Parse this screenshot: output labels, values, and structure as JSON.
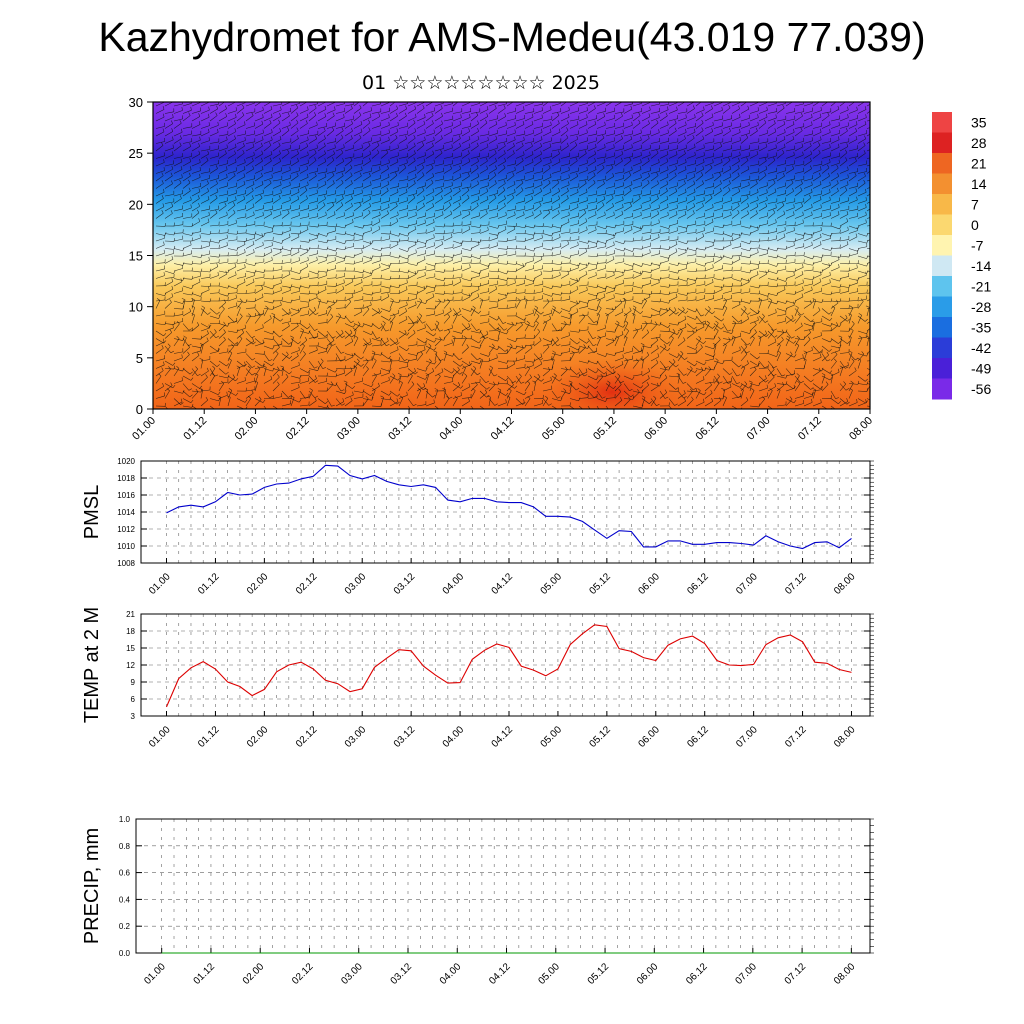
{
  "title": "Kazhydromet for AMS-Medeu(43.019 77.039)",
  "subtitle": "01 ☆☆☆☆☆☆☆☆☆ 2025",
  "colorbar": {
    "labels": [
      "35",
      "28",
      "21",
      "14",
      "7",
      "0",
      "-7",
      "-14",
      "-21",
      "-28",
      "-35",
      "-42",
      "-49",
      "-56"
    ],
    "colors": [
      "#ee4444",
      "#dd2222",
      "#ee6622",
      "#f39030",
      "#f8b848",
      "#fbd870",
      "#fff4b0",
      "#cfe8f3",
      "#5ec4ee",
      "#2a9ce8",
      "#1a6ee0",
      "#2b3dd8",
      "#4a20d8",
      "#7a2ae8"
    ]
  },
  "time_ticks": [
    "01.00",
    "01.12",
    "02.00",
    "02.12",
    "03.00",
    "03.12",
    "04.00",
    "04.12",
    "05.00",
    "05.12",
    "06.00",
    "06.12",
    "07.00",
    "07.12",
    "08.00"
  ],
  "chart_data": [
    {
      "type": "heatmap",
      "name": "temperature cross-section with wind barbs",
      "ylim": [
        0,
        30
      ],
      "y_ticks": [
        "0",
        "5",
        "10",
        "15",
        "20",
        "25",
        "30"
      ],
      "color_levels": [
        35,
        28,
        21,
        14,
        7,
        0,
        -7,
        -14,
        -21,
        -28,
        -35,
        -42,
        -49,
        -56
      ]
    },
    {
      "type": "line",
      "ylabel": "PMSL",
      "ylim": [
        1008,
        1020
      ],
      "y_ticks": [
        "1008",
        "1010",
        "1012",
        "1014",
        "1016",
        "1018",
        "1020"
      ],
      "color": "#0000cc",
      "x": [
        0,
        3,
        6,
        9,
        12,
        15,
        18,
        21,
        24,
        27,
        30,
        33,
        36,
        39,
        42,
        45,
        48,
        51,
        54,
        57,
        60,
        63,
        66,
        69,
        72,
        75,
        78,
        81,
        84,
        87,
        90,
        93,
        96,
        99,
        102,
        105,
        108,
        111,
        114,
        117,
        120,
        123,
        126,
        129,
        132,
        135,
        138,
        141,
        144,
        147,
        150,
        153,
        156,
        159,
        162,
        165,
        168
      ],
      "values": [
        1013.9,
        1014.6,
        1014.8,
        1014.6,
        1015.2,
        1016.3,
        1016.0,
        1016.1,
        1016.9,
        1017.3,
        1017.4,
        1017.9,
        1018.2,
        1019.5,
        1019.4,
        1018.3,
        1017.9,
        1018.3,
        1017.6,
        1017.2,
        1017.0,
        1017.2,
        1016.9,
        1015.4,
        1015.2,
        1015.6,
        1015.6,
        1015.2,
        1015.1,
        1015.1,
        1014.6,
        1013.5,
        1013.5,
        1013.4,
        1012.9,
        1011.9,
        1010.9,
        1011.8,
        1011.7,
        1009.9,
        1009.9,
        1010.6,
        1010.6,
        1010.2,
        1010.2,
        1010.4,
        1010.4,
        1010.3,
        1010.1,
        1011.2,
        1010.5,
        1010.0,
        1009.7,
        1010.4,
        1010.5,
        1009.8,
        1010.9
      ]
    },
    {
      "type": "line",
      "ylabel": "TEMP at 2 M",
      "ylim": [
        3,
        21
      ],
      "y_ticks": [
        "3",
        "6",
        "9",
        "12",
        "15",
        "18",
        "21"
      ],
      "color": "#dd0000",
      "x": [
        0,
        3,
        6,
        9,
        12,
        15,
        18,
        21,
        24,
        27,
        30,
        33,
        36,
        39,
        42,
        45,
        48,
        51,
        54,
        57,
        60,
        63,
        66,
        69,
        72,
        75,
        78,
        81,
        84,
        87,
        90,
        93,
        96,
        99,
        102,
        105,
        108,
        111,
        114,
        117,
        120,
        123,
        126,
        129,
        132,
        135,
        138,
        141,
        144,
        147,
        150,
        153,
        156,
        159,
        162,
        165,
        168
      ],
      "values": [
        4.6,
        9.6,
        11.5,
        12.6,
        11.3,
        9.0,
        8.2,
        6.6,
        7.7,
        10.8,
        12.0,
        12.5,
        11.3,
        9.3,
        8.7,
        7.3,
        7.8,
        11.6,
        13.2,
        14.7,
        14.5,
        11.8,
        10.2,
        8.8,
        8.9,
        13.0,
        14.6,
        15.7,
        15.1,
        11.8,
        11.1,
        10.1,
        11.3,
        15.6,
        17.5,
        19.1,
        18.8,
        14.9,
        14.4,
        13.3,
        12.8,
        15.5,
        16.6,
        17.1,
        15.8,
        12.8,
        12.0,
        11.9,
        12.1,
        15.6,
        16.8,
        17.3,
        16.1,
        12.5,
        12.3,
        11.2,
        10.7
      ]
    },
    {
      "type": "line",
      "ylabel": "PRECIP, mm",
      "ylim": [
        0.0,
        1.0
      ],
      "y_ticks": [
        "0.0",
        "0.2",
        "0.4",
        "0.6",
        "0.8",
        "1.0"
      ],
      "color": "#009900",
      "values": [
        0,
        0,
        0,
        0,
        0,
        0,
        0,
        0,
        0,
        0,
        0,
        0,
        0,
        0,
        0
      ]
    }
  ]
}
